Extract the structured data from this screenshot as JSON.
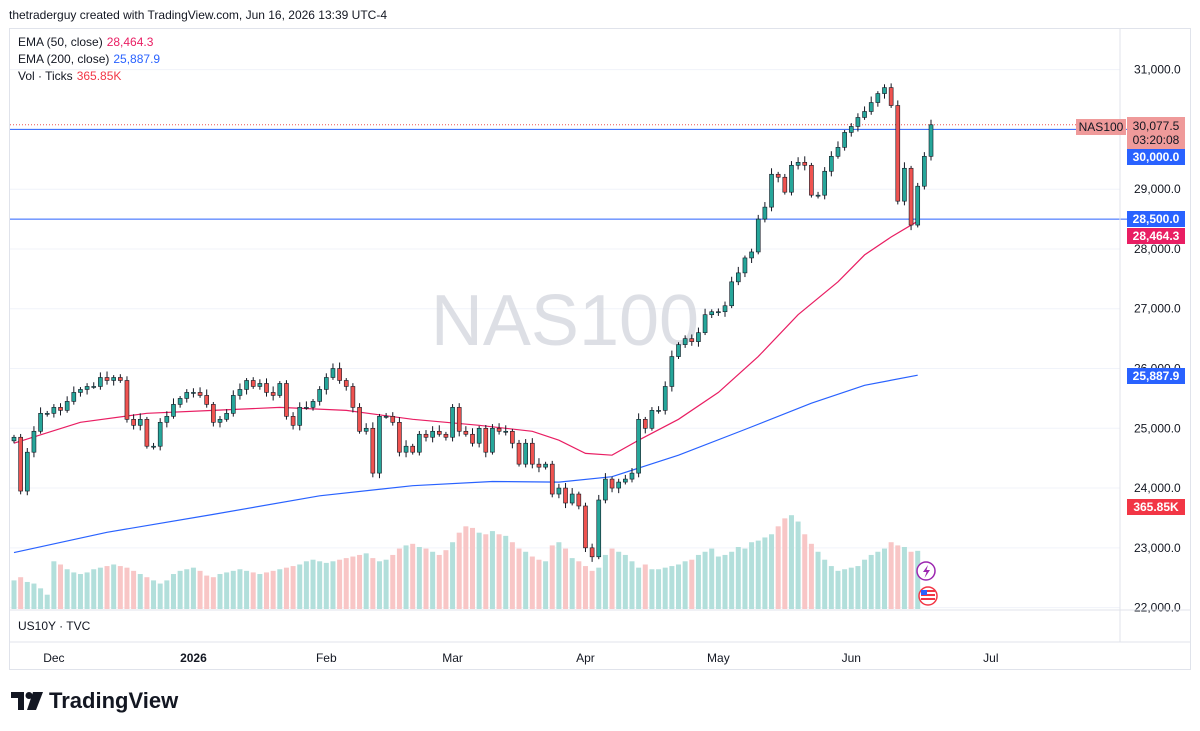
{
  "header": {
    "credit": "thetraderguy created with TradingView.com, Jun 16, 2026 13:39 UTC-4"
  },
  "legend": {
    "ema50": {
      "label": "EMA (50, close)",
      "value": "28,464.3",
      "color": "#e91e63"
    },
    "ema200": {
      "label": "EMA (200, close)",
      "value": "25,887.9",
      "color": "#2962ff"
    },
    "vol": {
      "label": "Vol · Ticks",
      "value": "365.85K",
      "color": "#f23645"
    }
  },
  "watermark": "NAS100",
  "subpane_label": "US10Y · TVC",
  "branding": {
    "name": "TradingView"
  },
  "price_tags": {
    "symbol": "NAS100",
    "last": "30,077.5",
    "countdown": "03:20:08",
    "line_30000": "30,000.0",
    "line_28500": "28,500.0",
    "ema50": "28,464.3",
    "ema200": "25,887.9",
    "volume": "365.85K"
  },
  "colors": {
    "up": "#26a69a",
    "down": "#ef5350",
    "hline": "#2962ff",
    "ema50": "#e91e63",
    "ema200": "#2962ff"
  },
  "chart_data": {
    "type": "candlestick",
    "symbol": "NAS100",
    "timeframe": "daily",
    "y_ticks": [
      22000,
      23000,
      24000,
      25000,
      26000,
      27000,
      28000,
      29000,
      30000,
      31000
    ],
    "y_tick_labels": [
      "22,000.0",
      "23,000.0",
      "24,000.0",
      "25,000.0",
      "26,000.0",
      "27,000.0",
      "28,000.0",
      "29,000.0",
      "30,000.0",
      "31,000.0"
    ],
    "ylim": [
      21960,
      31680
    ],
    "x_labels": [
      {
        "label": "Dec",
        "index": 6
      },
      {
        "label": "2026",
        "index": 27
      },
      {
        "label": "Feb",
        "index": 47
      },
      {
        "label": "Mar",
        "index": 66
      },
      {
        "label": "Apr",
        "index": 86
      },
      {
        "label": "May",
        "index": 106
      },
      {
        "label": "Jun",
        "index": 126
      },
      {
        "label": "Jul",
        "index": 147
      }
    ],
    "horizontal_lines": [
      30000,
      28500
    ],
    "last_price": 30077.5,
    "closes": [
      24850,
      23950,
      24600,
      24950,
      25250,
      25250,
      25350,
      25300,
      25450,
      25600,
      25650,
      25700,
      25700,
      25850,
      25800,
      25850,
      25800,
      25150,
      25050,
      25150,
      24700,
      24700,
      25100,
      25200,
      25400,
      25500,
      25600,
      25600,
      25550,
      25400,
      25100,
      25150,
      25250,
      25550,
      25650,
      25800,
      25700,
      25750,
      25600,
      25550,
      25750,
      25200,
      25050,
      25350,
      25350,
      25450,
      25650,
      25850,
      26000,
      25800,
      25700,
      25350,
      24950,
      25000,
      24250,
      25200,
      25200,
      25100,
      24600,
      24700,
      24600,
      24900,
      24850,
      24950,
      24900,
      24850,
      25350,
      24950,
      24900,
      24750,
      25000,
      24600,
      25000,
      24950,
      24950,
      24750,
      24400,
      24750,
      24400,
      24350,
      24400,
      23900,
      24000,
      23750,
      23900,
      23700,
      23000,
      22850,
      23800,
      24150,
      24000,
      24100,
      24150,
      24250,
      25150,
      25000,
      25300,
      25300,
      25700,
      26200,
      26400,
      26500,
      26450,
      26600,
      26900,
      26950,
      26950,
      27050,
      27450,
      27600,
      27850,
      27950,
      28500,
      28700,
      29250,
      29200,
      28950,
      29400,
      29450,
      29400,
      28900,
      28900,
      29300,
      29550,
      29700,
      29950,
      30050,
      30200,
      30300,
      30450,
      30600,
      30700,
      30400,
      28800,
      29350,
      28400,
      29050,
      29550,
      30077.5
    ],
    "ema50_points": [
      [
        0,
        24750
      ],
      [
        10,
        25100
      ],
      [
        20,
        25250
      ],
      [
        30,
        25300
      ],
      [
        40,
        25350
      ],
      [
        50,
        25300
      ],
      [
        60,
        25150
      ],
      [
        70,
        25050
      ],
      [
        78,
        24950
      ],
      [
        82,
        24800
      ],
      [
        86,
        24580
      ],
      [
        90,
        24550
      ],
      [
        94,
        24800
      ],
      [
        100,
        25150
      ],
      [
        106,
        25600
      ],
      [
        112,
        26200
      ],
      [
        118,
        26900
      ],
      [
        124,
        27450
      ],
      [
        128,
        27900
      ],
      [
        132,
        28200
      ],
      [
        136,
        28464.3
      ]
    ],
    "ema200_points": [
      [
        0,
        22920
      ],
      [
        14,
        23260
      ],
      [
        30,
        23560
      ],
      [
        46,
        23870
      ],
      [
        60,
        24040
      ],
      [
        72,
        24110
      ],
      [
        82,
        24100
      ],
      [
        90,
        24190
      ],
      [
        100,
        24550
      ],
      [
        110,
        24980
      ],
      [
        120,
        25420
      ],
      [
        128,
        25720
      ],
      [
        136,
        25887.9
      ]
    ],
    "volume_ylim": [
      0,
      1000
    ],
    "volume": [
      180,
      200,
      170,
      160,
      130,
      90,
      300,
      280,
      250,
      230,
      220,
      230,
      250,
      260,
      270,
      280,
      270,
      260,
      240,
      220,
      200,
      180,
      160,
      180,
      220,
      240,
      250,
      260,
      240,
      210,
      200,
      220,
      230,
      240,
      250,
      240,
      230,
      220,
      230,
      240,
      250,
      260,
      270,
      280,
      300,
      310,
      300,
      290,
      300,
      310,
      320,
      330,
      340,
      350,
      320,
      300,
      310,
      340,
      380,
      400,
      410,
      390,
      380,
      360,
      340,
      370,
      420,
      480,
      520,
      510,
      480,
      470,
      490,
      470,
      460,
      420,
      380,
      360,
      330,
      310,
      300,
      400,
      420,
      380,
      320,
      300,
      270,
      240,
      260,
      340,
      380,
      360,
      340,
      300,
      260,
      280,
      250,
      250,
      260,
      270,
      280,
      300,
      310,
      340,
      360,
      380,
      330,
      340,
      360,
      390,
      380,
      420,
      430,
      450,
      470,
      520,
      570,
      590,
      550,
      470,
      410,
      360,
      310,
      270,
      240,
      250,
      260,
      270,
      310,
      340,
      360,
      380,
      420,
      400,
      390,
      360,
      365.85
    ]
  }
}
